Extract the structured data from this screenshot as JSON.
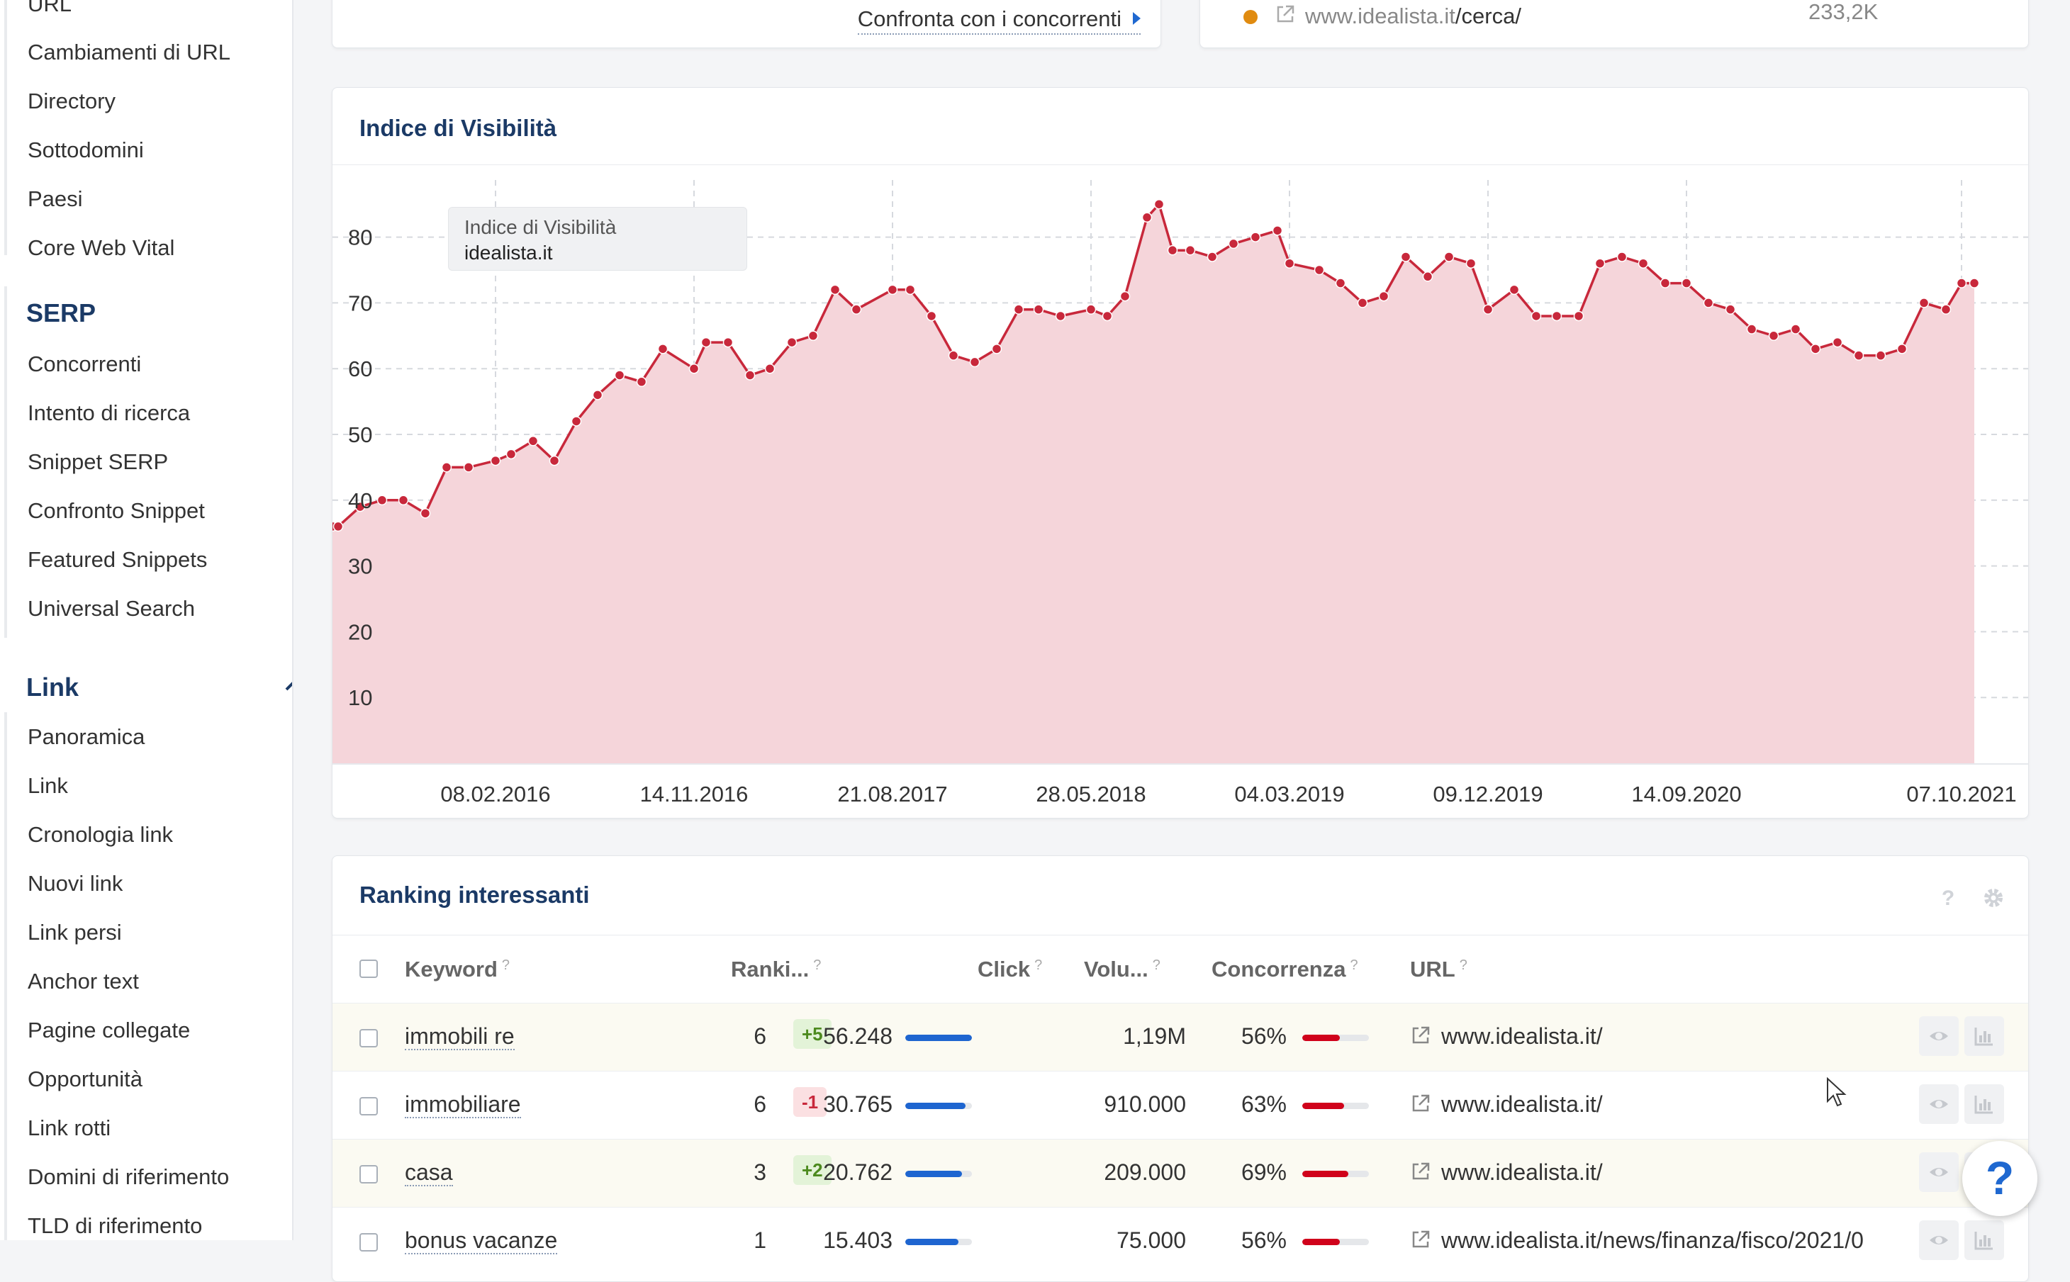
{
  "sidebar": {
    "items_top": [
      "URL",
      "Cambiamenti di URL",
      "Directory",
      "Sottodomini",
      "Paesi",
      "Core Web Vital"
    ],
    "serp_header": "SERP",
    "serp_items": [
      "Concorrenti",
      "Intento di ricerca",
      "Snippet SERP",
      "Confronto Snippet",
      "Featured Snippets",
      "Universal Search"
    ],
    "link_header": "Link",
    "link_items": [
      "Panoramica",
      "Link",
      "Cronologia link",
      "Nuovi link",
      "Link persi",
      "Anchor text",
      "Pagine collegate",
      "Opportunità",
      "Link rotti",
      "Domini di riferimento",
      "TLD di riferimento"
    ]
  },
  "top_left": {
    "compare_label": "Confronta con i concorrenti"
  },
  "top_right": {
    "url_prefix": "www.idealista.it",
    "url_path": "/cerca/",
    "value": "233,2K",
    "dot_color": "#e08b10"
  },
  "chart": {
    "title": "Indice di Visibilità",
    "tooltip_line1": "Indice di Visibilità",
    "tooltip_line2": "idealista.it"
  },
  "chart_data": {
    "type": "area",
    "title": "Indice di Visibilità",
    "series_name": "idealista.it",
    "y_ticks": [
      10,
      20,
      30,
      40,
      50,
      60,
      70,
      80
    ],
    "x_ticks": [
      "08.02.2016",
      "14.11.2016",
      "21.08.2017",
      "28.05.2018",
      "04.03.2019",
      "09.12.2019",
      "14.09.2020",
      "07.10.2021"
    ],
    "ylim": [
      0,
      90
    ],
    "grid": true,
    "line_color": "#c8283b",
    "fill_color": "#f5d5da",
    "points": [
      [
        "2015-06-01",
        36
      ],
      [
        "2015-07-01",
        36
      ],
      [
        "2015-08-01",
        39
      ],
      [
        "2015-09-01",
        40
      ],
      [
        "2015-10-01",
        40
      ],
      [
        "2015-11-01",
        38
      ],
      [
        "2015-12-01",
        45
      ],
      [
        "2016-01-01",
        45
      ],
      [
        "2016-02-08",
        46
      ],
      [
        "2016-03-01",
        47
      ],
      [
        "2016-04-01",
        49
      ],
      [
        "2016-05-01",
        46
      ],
      [
        "2016-06-01",
        52
      ],
      [
        "2016-07-01",
        56
      ],
      [
        "2016-08-01",
        59
      ],
      [
        "2016-09-01",
        58
      ],
      [
        "2016-10-01",
        63
      ],
      [
        "2016-11-14",
        60
      ],
      [
        "2016-12-01",
        64
      ],
      [
        "2017-01-01",
        64
      ],
      [
        "2017-02-01",
        59
      ],
      [
        "2017-03-01",
        60
      ],
      [
        "2017-04-01",
        64
      ],
      [
        "2017-05-01",
        65
      ],
      [
        "2017-06-01",
        72
      ],
      [
        "2017-07-01",
        69
      ],
      [
        "2017-08-21",
        72
      ],
      [
        "2017-09-15",
        72
      ],
      [
        "2017-10-15",
        68
      ],
      [
        "2017-11-15",
        62
      ],
      [
        "2017-12-15",
        61
      ],
      [
        "2018-01-15",
        63
      ],
      [
        "2018-02-15",
        69
      ],
      [
        "2018-03-15",
        69
      ],
      [
        "2018-04-15",
        68
      ],
      [
        "2018-05-28",
        69
      ],
      [
        "2018-06-20",
        68
      ],
      [
        "2018-07-15",
        71
      ],
      [
        "2018-08-15",
        83
      ],
      [
        "2018-09-01",
        85
      ],
      [
        "2018-09-20",
        78
      ],
      [
        "2018-10-15",
        78
      ],
      [
        "2018-11-15",
        77
      ],
      [
        "2018-12-15",
        79
      ],
      [
        "2019-01-15",
        80
      ],
      [
        "2019-02-15",
        81
      ],
      [
        "2019-03-04",
        76
      ],
      [
        "2019-04-15",
        75
      ],
      [
        "2019-05-15",
        73
      ],
      [
        "2019-06-15",
        70
      ],
      [
        "2019-07-15",
        71
      ],
      [
        "2019-08-15",
        77
      ],
      [
        "2019-09-15",
        74
      ],
      [
        "2019-10-15",
        77
      ],
      [
        "2019-11-15",
        76
      ],
      [
        "2019-12-09",
        69
      ],
      [
        "2020-01-15",
        72
      ],
      [
        "2020-02-15",
        68
      ],
      [
        "2020-03-15",
        68
      ],
      [
        "2020-04-15",
        68
      ],
      [
        "2020-05-15",
        76
      ],
      [
        "2020-06-15",
        77
      ],
      [
        "2020-07-15",
        76
      ],
      [
        "2020-08-15",
        73
      ],
      [
        "2020-09-14",
        73
      ],
      [
        "2020-10-15",
        70
      ],
      [
        "2020-11-15",
        69
      ],
      [
        "2020-12-15",
        66
      ],
      [
        "2021-01-15",
        65
      ],
      [
        "2021-02-15",
        66
      ],
      [
        "2021-03-15",
        63
      ],
      [
        "2021-04-15",
        64
      ],
      [
        "2021-05-15",
        62
      ],
      [
        "2021-06-15",
        62
      ],
      [
        "2021-07-15",
        63
      ],
      [
        "2021-08-15",
        70
      ],
      [
        "2021-09-15",
        69
      ],
      [
        "2021-10-07",
        73
      ],
      [
        "2021-10-25",
        73
      ]
    ]
  },
  "ranking": {
    "title": "Ranking interessanti",
    "columns": {
      "keyword": "Keyword",
      "ranking": "Ranki...",
      "click": "Click",
      "volume": "Volu...",
      "competition": "Concorrenza",
      "url": "URL"
    },
    "rows": [
      {
        "keyword": "immobili re",
        "rank": "6",
        "change": "+5",
        "change_type": "up",
        "click": "56.248",
        "click_level": 1.0,
        "volume": "1,19M",
        "competition": "56%",
        "comp_level": 0.56,
        "url": "www.idealista.it/"
      },
      {
        "keyword": "immobiliare",
        "rank": "6",
        "change": "-1",
        "change_type": "down",
        "click": "30.765",
        "click_level": 0.9,
        "volume": "910.000",
        "competition": "63%",
        "comp_level": 0.63,
        "url": "www.idealista.it/"
      },
      {
        "keyword": "casa",
        "rank": "3",
        "change": "+2",
        "change_type": "up",
        "click": "20.762",
        "click_level": 0.85,
        "volume": "209.000",
        "competition": "69%",
        "comp_level": 0.69,
        "url": "www.idealista.it/"
      },
      {
        "keyword": "bonus vacanze",
        "rank": "1",
        "change": "",
        "change_type": "",
        "click": "15.403",
        "click_level": 0.8,
        "volume": "75.000",
        "competition": "56%",
        "comp_level": 0.56,
        "url": "www.idealista.it/news/finanza/fisco/2021/0"
      }
    ]
  },
  "help": {
    "label": "?"
  }
}
